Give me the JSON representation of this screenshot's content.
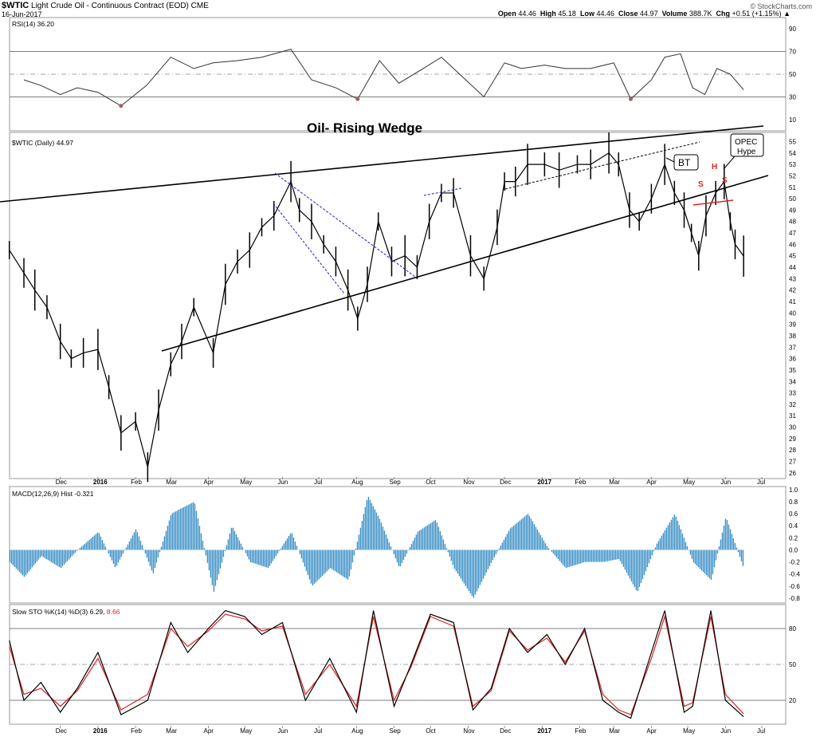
{
  "header": {
    "symbol": "$WTIC",
    "name": "Light Crude Oil - Continuous Contract (EOD)",
    "exchange": "CME",
    "date": "16-Jun-2017",
    "open_label": "Open",
    "open": "44.46",
    "high_label": "High",
    "high": "45.18",
    "low_label": "Low",
    "low": "44.46",
    "close_label": "Close",
    "close": "44.97",
    "volume_label": "Volume",
    "volume": "388.7K",
    "chg_label": "Chg",
    "chg": "+0.51 (+1.15%)",
    "brand": "© StockCharts.com"
  },
  "chart_data": [
    {
      "type": "line",
      "panel": "rsi",
      "label": "RSI(14) 36.20",
      "yticks": [
        10,
        30,
        50,
        70,
        90
      ],
      "ylim": [
        0,
        100
      ],
      "ref_lines": [
        30,
        50,
        70
      ],
      "x": [
        "2015-11-01",
        "2015-11-15",
        "2015-12-01",
        "2015-12-15",
        "2016-01-01",
        "2016-01-20",
        "2016-02-10",
        "2016-03-01",
        "2016-03-20",
        "2016-04-05",
        "2016-04-25",
        "2016-05-15",
        "2016-06-08",
        "2016-06-25",
        "2016-07-15",
        "2016-08-02",
        "2016-08-20",
        "2016-09-05",
        "2016-09-25",
        "2016-10-10",
        "2016-10-25",
        "2016-11-14",
        "2016-12-01",
        "2016-12-15",
        "2017-01-03",
        "2017-01-20",
        "2017-02-10",
        "2017-03-01",
        "2017-03-15",
        "2017-04-01",
        "2017-04-12",
        "2017-04-25",
        "2017-05-05",
        "2017-05-15",
        "2017-05-25",
        "2017-06-05",
        "2017-06-16"
      ],
      "values": [
        45,
        40,
        32,
        38,
        34,
        22,
        40,
        65,
        55,
        60,
        62,
        65,
        72,
        45,
        38,
        28,
        62,
        42,
        55,
        65,
        50,
        30,
        60,
        55,
        58,
        55,
        55,
        60,
        28,
        45,
        65,
        68,
        38,
        32,
        55,
        50,
        36.2
      ]
    },
    {
      "type": "bar",
      "panel": "price",
      "label": "$WTIC (Daily) 44.97",
      "title": "Oil- Rising Wedge",
      "yticks": [
        26,
        27,
        28,
        29,
        30,
        31,
        32,
        33,
        34,
        35,
        36,
        37,
        38,
        39,
        40,
        41,
        42,
        43,
        44,
        45,
        46,
        47,
        48,
        49,
        50,
        51,
        52,
        53,
        54,
        55
      ],
      "ylim": [
        25.5,
        55.8
      ],
      "x": [
        "2015-10-20",
        "2015-11-01",
        "2015-11-10",
        "2015-11-20",
        "2015-12-01",
        "2015-12-10",
        "2015-12-20",
        "2016-01-01",
        "2016-01-10",
        "2016-01-20",
        "2016-02-01",
        "2016-02-11",
        "2016-02-20",
        "2016-03-01",
        "2016-03-10",
        "2016-03-20",
        "2016-04-05",
        "2016-04-15",
        "2016-04-25",
        "2016-05-05",
        "2016-05-15",
        "2016-05-25",
        "2016-06-08",
        "2016-06-15",
        "2016-06-25",
        "2016-07-05",
        "2016-07-15",
        "2016-07-25",
        "2016-08-02",
        "2016-08-10",
        "2016-08-19",
        "2016-08-30",
        "2016-09-10",
        "2016-09-20",
        "2016-09-30",
        "2016-10-10",
        "2016-10-20",
        "2016-11-03",
        "2016-11-14",
        "2016-11-25",
        "2016-12-01",
        "2016-12-10",
        "2016-12-20",
        "2017-01-03",
        "2017-01-15",
        "2017-01-30",
        "2017-02-10",
        "2017-02-25",
        "2017-03-05",
        "2017-03-14",
        "2017-03-22",
        "2017-04-01",
        "2017-04-12",
        "2017-04-20",
        "2017-04-28",
        "2017-05-04",
        "2017-05-10",
        "2017-05-16",
        "2017-05-24",
        "2017-05-31",
        "2017-06-05",
        "2017-06-09",
        "2017-06-16"
      ],
      "values": [
        45.5,
        43.5,
        42.0,
        40.5,
        37.5,
        36.0,
        36.5,
        36.8,
        33.5,
        29.5,
        30.5,
        26.5,
        31.5,
        35.5,
        37.5,
        40.5,
        36.5,
        42.5,
        44.5,
        45.5,
        47.5,
        48.5,
        51.5,
        49.0,
        48.0,
        46.0,
        44.5,
        42.0,
        39.5,
        42.5,
        48.0,
        44.5,
        45.0,
        44.0,
        48.0,
        50.5,
        50.5,
        45.0,
        43.0,
        47.5,
        51.5,
        51.5,
        53.0,
        53.0,
        52.5,
        53.0,
        53.0,
        54.0,
        53.0,
        49.0,
        48.0,
        50.0,
        53.0,
        50.5,
        49.0,
        47.0,
        45.0,
        48.5,
        50.5,
        51.5,
        48.0,
        46.0,
        44.97
      ],
      "annotations": [
        "BT",
        "OPEC Hype",
        "S",
        "H",
        "S"
      ]
    },
    {
      "type": "bar",
      "panel": "macd",
      "label": "MACD(12,26,9) Hist -0.321",
      "yticks": [
        -0.8,
        -0.6,
        -0.4,
        -0.2,
        0.0,
        0.2,
        0.4,
        0.6,
        0.8,
        1.0
      ],
      "ylim": [
        -0.88,
        1.05
      ],
      "x": [
        "2015-10-20",
        "2015-11-01",
        "2015-11-15",
        "2015-12-01",
        "2015-12-15",
        "2016-01-01",
        "2016-01-15",
        "2016-02-01",
        "2016-02-15",
        "2016-03-01",
        "2016-03-20",
        "2016-04-05",
        "2016-04-20",
        "2016-05-05",
        "2016-05-20",
        "2016-06-08",
        "2016-06-25",
        "2016-07-10",
        "2016-07-25",
        "2016-08-10",
        "2016-08-20",
        "2016-09-05",
        "2016-09-20",
        "2016-10-05",
        "2016-10-20",
        "2016-11-05",
        "2016-11-20",
        "2016-12-05",
        "2016-12-20",
        "2017-01-05",
        "2017-01-20",
        "2017-02-05",
        "2017-02-20",
        "2017-03-05",
        "2017-03-20",
        "2017-04-05",
        "2017-04-20",
        "2017-05-05",
        "2017-05-20",
        "2017-06-01",
        "2017-06-16"
      ],
      "values": [
        -0.2,
        -0.45,
        -0.1,
        -0.3,
        0.0,
        0.3,
        -0.3,
        0.35,
        -0.4,
        0.6,
        0.8,
        -0.7,
        0.4,
        -0.2,
        -0.3,
        0.3,
        -0.6,
        -0.3,
        -0.5,
        0.9,
        0.5,
        -0.3,
        0.3,
        0.5,
        -0.3,
        -0.8,
        -0.2,
        0.35,
        0.6,
        0.05,
        -0.3,
        -0.2,
        -0.2,
        -0.15,
        -0.7,
        0.1,
        0.6,
        -0.2,
        -0.5,
        0.55,
        -0.32
      ]
    },
    {
      "type": "line",
      "panel": "sto",
      "label": "Slow STO %K(14) %D(3) 6.29,",
      "label_red": "8.66",
      "yticks": [
        20,
        50,
        80
      ],
      "ylim": [
        0,
        100
      ],
      "ref_lines": [
        20,
        50,
        80
      ],
      "x": [
        "2015-10-20",
        "2015-11-01",
        "2015-11-15",
        "2015-12-01",
        "2015-12-15",
        "2016-01-01",
        "2016-01-20",
        "2016-02-11",
        "2016-03-01",
        "2016-03-15",
        "2016-04-01",
        "2016-04-15",
        "2016-05-01",
        "2016-05-15",
        "2016-06-01",
        "2016-06-20",
        "2016-07-10",
        "2016-08-01",
        "2016-08-15",
        "2016-09-01",
        "2016-09-15",
        "2016-10-01",
        "2016-10-20",
        "2016-11-05",
        "2016-11-20",
        "2016-12-05",
        "2016-12-20",
        "2017-01-05",
        "2017-01-20",
        "2017-02-05",
        "2017-02-20",
        "2017-03-05",
        "2017-03-15",
        "2017-04-01",
        "2017-04-12",
        "2017-04-28",
        "2017-05-05",
        "2017-05-20",
        "2017-06-01",
        "2017-06-16"
      ],
      "series": [
        {
          "values": [
            70,
            20,
            35,
            10,
            30,
            60,
            8,
            20,
            85,
            60,
            80,
            95,
            90,
            75,
            85,
            20,
            55,
            10,
            95,
            15,
            50,
            92,
            85,
            12,
            30,
            80,
            60,
            75,
            50,
            80,
            20,
            10,
            5,
            60,
            95,
            10,
            15,
            95,
            20,
            6.29
          ]
        },
        {
          "values": [
            65,
            25,
            30,
            15,
            28,
            55,
            12,
            25,
            80,
            65,
            78,
            92,
            88,
            78,
            82,
            25,
            50,
            15,
            90,
            20,
            48,
            90,
            82,
            15,
            28,
            78,
            62,
            72,
            52,
            78,
            25,
            12,
            8,
            55,
            90,
            15,
            18,
            90,
            25,
            8.66
          ]
        }
      ]
    }
  ],
  "x_axis_labels": [
    "Dec",
    "2016",
    "Feb",
    "Mar",
    "Apr",
    "May",
    "Jun",
    "Jul",
    "Aug",
    "Sep",
    "Oct",
    "Nov",
    "Dec",
    "2017",
    "Feb",
    "Mar",
    "Apr",
    "May",
    "Jun",
    "Jul"
  ],
  "colors": {
    "macd_bar": "#3a8fc6",
    "sto_d": "#e02020",
    "hs_mark": "#e01e1e",
    "wedge_inner": "#1a1acc",
    "rsi_fill": "#a06060"
  }
}
